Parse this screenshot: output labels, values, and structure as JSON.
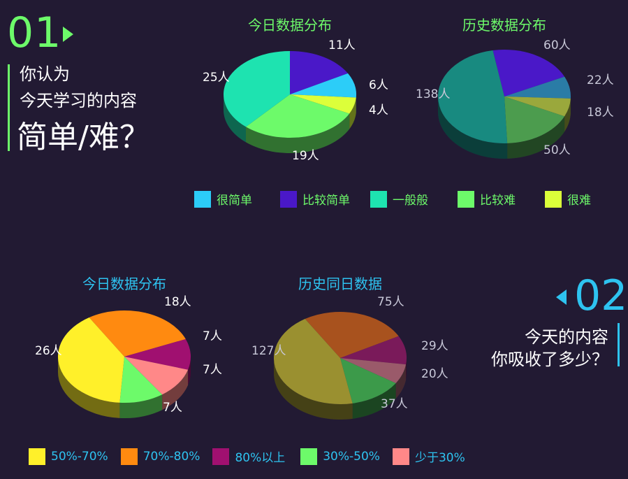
{
  "q1": {
    "number": "01",
    "line1": "你认为",
    "line2": "今天学习的内容",
    "line3": "简单/难？"
  },
  "q2": {
    "number": "02",
    "line1": "今天的内容",
    "line2": "你吸收了多少？"
  },
  "legend1": [
    {
      "label": "很简单",
      "color": "#2ccdf8"
    },
    {
      "label": "比较简单",
      "color": "#4a18c8"
    },
    {
      "label": "一般般",
      "color": "#1ee3b0"
    },
    {
      "label": "比较难",
      "color": "#6dfa6a"
    },
    {
      "label": "很难",
      "color": "#dcff3a"
    }
  ],
  "legend2": [
    {
      "label": "50%-70%",
      "color": "#fff02a"
    },
    {
      "label": "70%-80%",
      "color": "#ff8a10"
    },
    {
      "label": "80%以上",
      "color": "#a01070"
    },
    {
      "label": "30%-50%",
      "color": "#6dfa6a"
    },
    {
      "label": "少于30%",
      "color": "#ff8888"
    }
  ],
  "chart_data": [
    {
      "type": "pie",
      "title": "今日数据分布",
      "categories": [
        "很简单",
        "比较简单",
        "一般般",
        "比较难",
        "很难"
      ],
      "values": [
        6,
        11,
        25,
        19,
        4
      ],
      "labels": [
        "6人",
        "11人",
        "25人",
        "19人",
        "4人"
      ],
      "colors": [
        "#2ccdf8",
        "#4a18c8",
        "#1ee3b0",
        "#6dfa6a",
        "#dcff3a"
      ]
    },
    {
      "type": "pie",
      "title": "历史数据分布",
      "categories": [
        "很简单",
        "比较简单",
        "一般般",
        "比较难",
        "很难"
      ],
      "values": [
        22,
        60,
        138,
        50,
        18
      ],
      "labels": [
        "22人",
        "60人",
        "138人",
        "50人",
        "18人"
      ],
      "colors": [
        "#2a7ca6",
        "#4a18c8",
        "#188a80",
        "#4c9c4e",
        "#9aa83c"
      ]
    },
    {
      "type": "pie",
      "title": "今日数据分布",
      "categories": [
        "50%-70%",
        "70%-80%",
        "80%以上",
        "30%-50%",
        "少于30%"
      ],
      "values": [
        26,
        18,
        7,
        7,
        7
      ],
      "labels": [
        "26人",
        "18人",
        "7人",
        "7人",
        "7人"
      ],
      "colors": [
        "#fff02a",
        "#ff8a10",
        "#a01070",
        "#6dfa6a",
        "#ff8888"
      ]
    },
    {
      "type": "pie",
      "title": "历史同日数据",
      "categories": [
        "50%-70%",
        "70%-80%",
        "80%以上",
        "30%-50%",
        "少于30%"
      ],
      "values": [
        127,
        75,
        29,
        37,
        20
      ],
      "labels": [
        "127人",
        "75人",
        "29人",
        "37人",
        "20人"
      ],
      "colors": [
        "#9a9030",
        "#a8521e",
        "#7a1a5a",
        "#3c9a4a",
        "#9a5a6a"
      ]
    }
  ]
}
